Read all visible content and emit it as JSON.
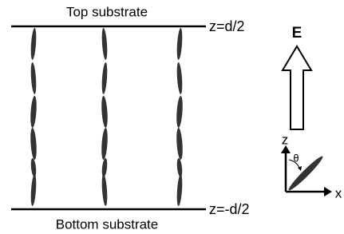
{
  "labels": {
    "top_substrate": "Top substrate",
    "top_position": "z=d/2",
    "field": "E",
    "z_axis": "z",
    "angle": "θ",
    "x_axis": "x",
    "bottom_substrate": "Bottom substrate",
    "bottom_position": "z=-d/2"
  }
}
